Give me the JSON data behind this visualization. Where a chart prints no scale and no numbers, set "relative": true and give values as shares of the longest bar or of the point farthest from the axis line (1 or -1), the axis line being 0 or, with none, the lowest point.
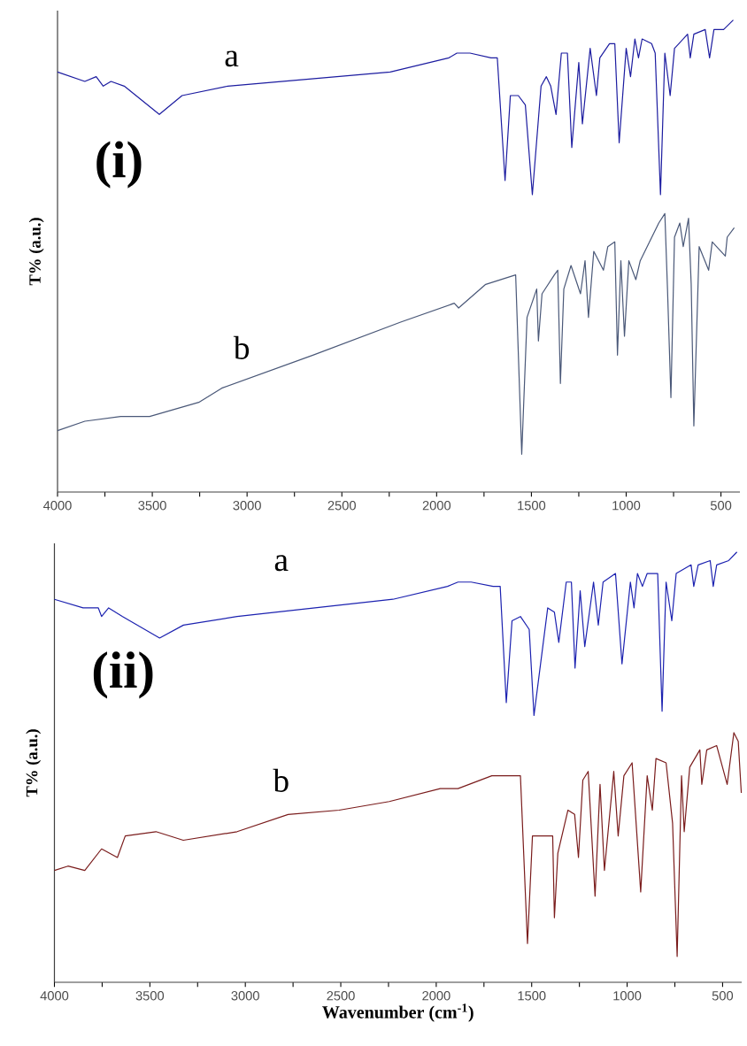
{
  "chart_data": [
    {
      "type": "line",
      "relative": true,
      "ylabel": "T% (a.u.)",
      "xlim": [
        4000,
        400
      ],
      "xticks": [
        4000,
        {
          "value": 3750,
          "label": null
        },
        3500,
        {
          "value": 3250,
          "label": null
        },
        3000,
        {
          "value": 2750,
          "label": null
        },
        2500,
        {
          "value": 2250,
          "label": null
        },
        2000,
        {
          "value": 1750,
          "label": null
        },
        1500,
        {
          "value": 1250,
          "label": null
        },
        1000,
        {
          "value": 750,
          "label": null
        },
        500
      ],
      "annotations": [
        "a",
        "b",
        "(i)"
      ],
      "series": [
        {
          "color": "#1c1ca0",
          "x": [
            4000,
            3856,
            3796,
            3759,
            3718,
            3648,
            3463,
            3343,
            3102,
            2245,
            1935,
            1893,
            1824,
            1713,
            1680,
            1639,
            1611,
            1569,
            1532,
            1495,
            1449,
            1421,
            1398,
            1370,
            1342,
            1310,
            1287,
            1250,
            1231,
            1190,
            1157,
            1139,
            1088,
            1060,
            1037,
            1000,
            977,
            954,
            935,
            916,
            866,
            847,
            819,
            796,
            768,
            745,
            676,
            662,
            643,
            583,
            560,
            537,
            486,
            435
          ],
          "values": [
            0.89,
            0.87,
            0.88,
            0.86,
            0.87,
            0.86,
            0.8,
            0.84,
            0.86,
            0.89,
            0.92,
            0.93,
            0.93,
            0.92,
            0.92,
            0.66,
            0.84,
            0.84,
            0.82,
            0.63,
            0.86,
            0.88,
            0.86,
            0.8,
            0.93,
            0.93,
            0.73,
            0.91,
            0.78,
            0.94,
            0.84,
            0.92,
            0.95,
            0.95,
            0.74,
            0.94,
            0.88,
            0.96,
            0.92,
            0.96,
            0.95,
            0.93,
            0.63,
            0.93,
            0.84,
            0.94,
            0.97,
            0.92,
            0.97,
            0.98,
            0.92,
            0.98,
            0.98,
            1.0
          ]
        },
        {
          "color": "#4a5878",
          "x": [
            4000,
            3856,
            3667,
            3514,
            3255,
            3134,
            2653,
            2190,
            1907,
            1884,
            1741,
            1583,
            1551,
            1523,
            1472,
            1463,
            1444,
            1379,
            1361,
            1347,
            1329,
            1291,
            1241,
            1217,
            1199,
            1171,
            1120,
            1097,
            1060,
            1046,
            1028,
            1009,
            986,
            949,
            926,
            828,
            796,
            782,
            764,
            745,
            717,
            699,
            671,
            657,
            643,
            615,
            565,
            546,
            477,
            467,
            430
          ],
          "values": [
            0.13,
            0.15,
            0.16,
            0.16,
            0.19,
            0.22,
            0.29,
            0.36,
            0.4,
            0.39,
            0.44,
            0.46,
            0.08,
            0.37,
            0.43,
            0.32,
            0.42,
            0.46,
            0.47,
            0.23,
            0.43,
            0.48,
            0.42,
            0.49,
            0.37,
            0.51,
            0.47,
            0.52,
            0.53,
            0.29,
            0.49,
            0.33,
            0.49,
            0.45,
            0.49,
            0.57,
            0.59,
            0.43,
            0.2,
            0.54,
            0.57,
            0.52,
            0.58,
            0.44,
            0.14,
            0.52,
            0.47,
            0.53,
            0.5,
            0.54,
            0.56
          ]
        }
      ]
    },
    {
      "type": "line",
      "relative": true,
      "ylabel": "T% (a.u.)",
      "xlabel": "Wavenumber (cm$^{-1}$)",
      "xlim": [
        4000,
        400
      ],
      "xticks": [
        4000,
        {
          "value": 3750,
          "label": null
        },
        3500,
        {
          "value": 3250,
          "label": null
        },
        3000,
        {
          "value": 2750,
          "label": null
        },
        2500,
        {
          "value": 2250,
          "label": null
        },
        2000,
        {
          "value": 1750,
          "label": null
        },
        1500,
        {
          "value": 1250,
          "label": null
        },
        1000,
        {
          "value": 750,
          "label": null
        },
        500
      ],
      "annotations": [
        "a",
        "b",
        "(ii)"
      ],
      "series": [
        {
          "color": "#1c22b0",
          "x": [
            4000,
            3850,
            3770,
            3753,
            3716,
            3643,
            3449,
            3324,
            3043,
            2227,
            1941,
            1886,
            1817,
            1702,
            1665,
            1633,
            1603,
            1559,
            1513,
            1488,
            1416,
            1381,
            1358,
            1319,
            1292,
            1273,
            1246,
            1222,
            1176,
            1151,
            1126,
            1061,
            1027,
            983,
            964,
            946,
            920,
            895,
            840,
            817,
            796,
            766,
            743,
            665,
            651,
            628,
            565,
            549,
            531,
            468,
            425
          ],
          "values": [
            0.89,
            0.87,
            0.87,
            0.85,
            0.87,
            0.85,
            0.8,
            0.83,
            0.85,
            0.89,
            0.92,
            0.93,
            0.93,
            0.92,
            0.92,
            0.65,
            0.84,
            0.85,
            0.82,
            0.62,
            0.87,
            0.86,
            0.79,
            0.93,
            0.93,
            0.73,
            0.91,
            0.78,
            0.93,
            0.83,
            0.93,
            0.95,
            0.74,
            0.93,
            0.87,
            0.95,
            0.92,
            0.95,
            0.95,
            0.63,
            0.93,
            0.84,
            0.95,
            0.97,
            0.92,
            0.97,
            0.98,
            0.92,
            0.97,
            0.98,
            1.0
          ]
        },
        {
          "color": "#7a1c1c",
          "x": [
            4000,
            3929,
            3841,
            3753,
            3670,
            3629,
            3468,
            3325,
            3043,
            2776,
            2509,
            2246,
            1979,
            1886,
            1709,
            1559,
            1522,
            1496,
            1390,
            1381,
            1363,
            1310,
            1275,
            1255,
            1232,
            1204,
            1168,
            1142,
            1119,
            1070,
            1047,
            1017,
            974,
            929,
            895,
            868,
            849,
            796,
            762,
            738,
            715,
            701,
            672,
            619,
            609,
            583,
            531,
            476,
            441,
            418,
            402
          ],
          "values": [
            0.26,
            0.27,
            0.26,
            0.31,
            0.29,
            0.34,
            0.35,
            0.33,
            0.35,
            0.39,
            0.4,
            0.42,
            0.45,
            0.45,
            0.48,
            0.48,
            0.09,
            0.34,
            0.34,
            0.15,
            0.3,
            0.4,
            0.39,
            0.29,
            0.47,
            0.49,
            0.2,
            0.46,
            0.26,
            0.49,
            0.34,
            0.48,
            0.51,
            0.21,
            0.48,
            0.4,
            0.52,
            0.51,
            0.37,
            0.06,
            0.48,
            0.35,
            0.5,
            0.54,
            0.46,
            0.54,
            0.55,
            0.46,
            0.58,
            0.56,
            0.44
          ]
        }
      ]
    }
  ]
}
